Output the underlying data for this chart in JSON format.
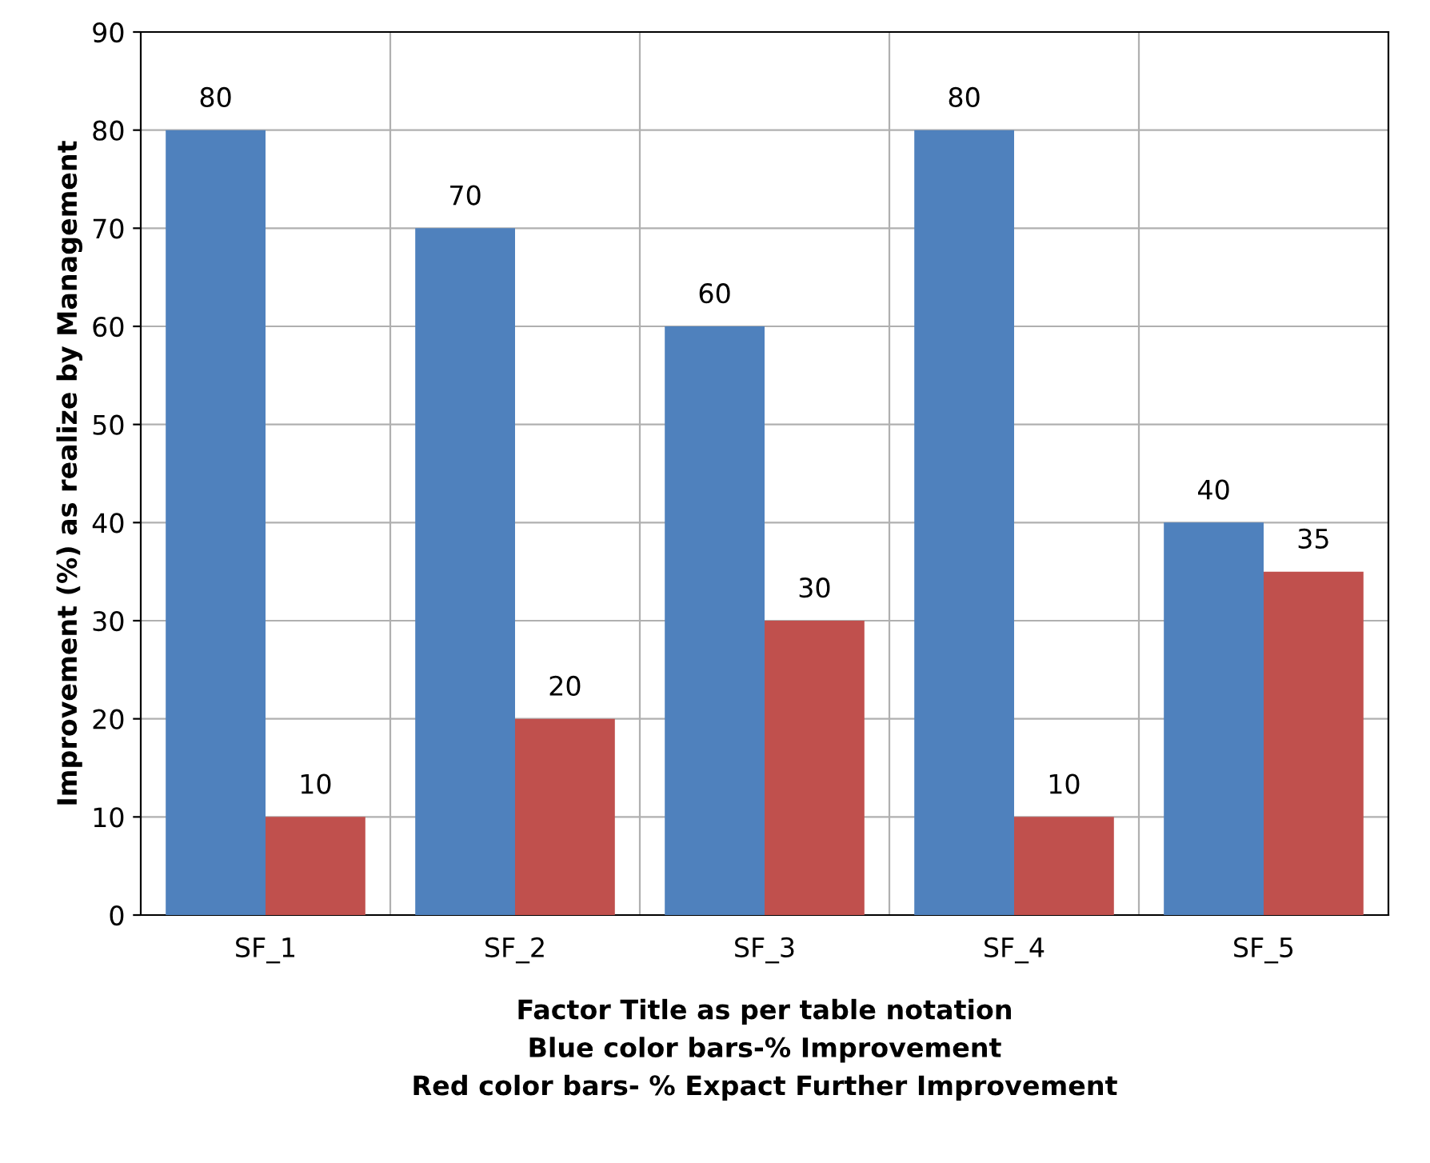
{
  "chart_data": {
    "type": "bar",
    "ylabel": "Improvement (%) as realize by Management",
    "xlabel": "Factor Title as per table notation\nBlue color bars-% Improvement\nRed color bars- % Expact Further Improvement",
    "categories": [
      "SF_1",
      "SF_2",
      "SF_3",
      "SF_4",
      "SF_5"
    ],
    "series": [
      {
        "color": "#4f81bd",
        "values": [
          80,
          70,
          60,
          80,
          40
        ]
      },
      {
        "color": "#c0504d",
        "values": [
          10,
          20,
          30,
          10,
          35
        ]
      }
    ],
    "ylim": [
      0,
      90
    ],
    "yticks": [
      0,
      10,
      20,
      30,
      40,
      50,
      60,
      70,
      80,
      90
    ],
    "grid": true,
    "data_labels": true
  }
}
